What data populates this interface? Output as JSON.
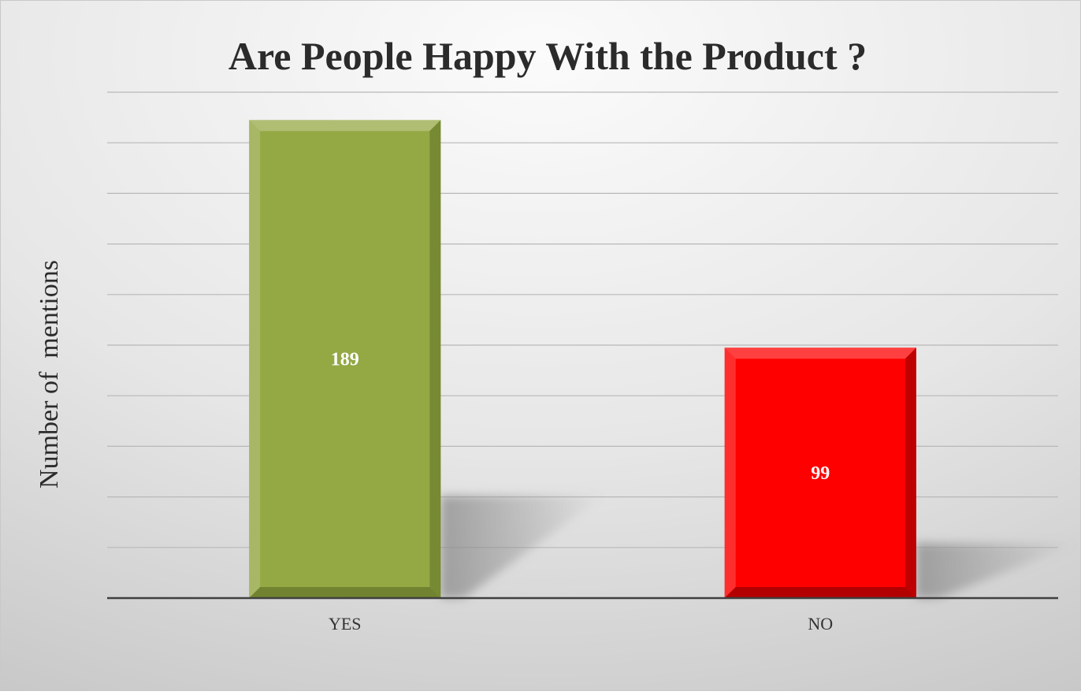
{
  "chart_data": {
    "type": "bar",
    "title": "Are People Happy With the Product ?",
    "xlabel": "",
    "ylabel": "Number of  mentions",
    "categories": [
      "YES",
      "NO"
    ],
    "values": [
      189,
      99
    ],
    "ylim": [
      0,
      200
    ],
    "y_gridline_step": 20,
    "y_tick_labels_shown": false,
    "grid": true,
    "legend": "none",
    "data_labels": true,
    "colors": {
      "bars": [
        "#94a844",
        "#ff0000"
      ],
      "bar_shadows": [
        "#5e6f26",
        "#8b0000"
      ],
      "label_text": "#ffffff",
      "axis": "#404040",
      "gridline": "#b8b8b8",
      "title": "#2b2b2b",
      "background_top": "#f6f6f6",
      "background_bottom": "#cbcbcb"
    }
  }
}
